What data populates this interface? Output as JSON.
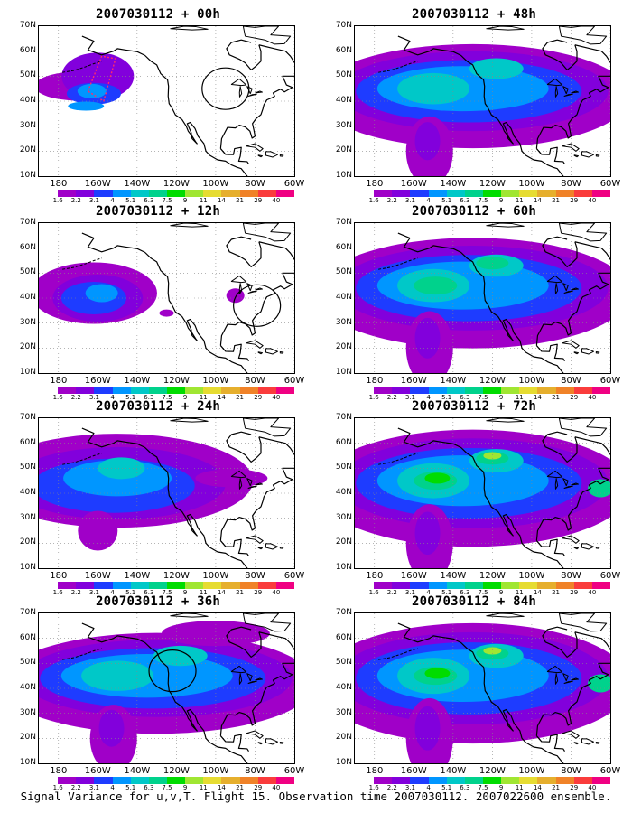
{
  "panels": [
    {
      "title": "2007030112 + 00h",
      "lead_hours": 0,
      "intensity": 0.25,
      "circle": {
        "lon": -95,
        "lat": 45
      },
      "dashed_box": true
    },
    {
      "title": "2007030112 + 48h",
      "lead_hours": 48,
      "intensity": 0.6,
      "circle": null,
      "dashed_box": false
    },
    {
      "title": "2007030112 + 12h",
      "lead_hours": 12,
      "intensity": 0.35,
      "circle": {
        "lon": -79,
        "lat": 37
      },
      "dashed_box": false
    },
    {
      "title": "2007030112 + 60h",
      "lead_hours": 60,
      "intensity": 0.7,
      "circle": null,
      "dashed_box": false
    },
    {
      "title": "2007030112 + 24h",
      "lead_hours": 24,
      "intensity": 0.45,
      "circle": null,
      "dashed_box": false
    },
    {
      "title": "2007030112 + 72h",
      "lead_hours": 72,
      "intensity": 0.8,
      "circle": null,
      "dashed_box": false
    },
    {
      "title": "2007030112 + 36h",
      "lead_hours": 36,
      "intensity": 0.55,
      "circle": {
        "lon": -122,
        "lat": 47
      },
      "dashed_box": false
    },
    {
      "title": "2007030112 + 84h",
      "lead_hours": 84,
      "intensity": 0.85,
      "circle": null,
      "dashed_box": false
    }
  ],
  "axes": {
    "lat_labels": [
      "70N",
      "60N",
      "50N",
      "40N",
      "30N",
      "20N",
      "10N"
    ],
    "lon_labels": [
      "180",
      "160W",
      "140W",
      "120W",
      "100W",
      "80W",
      "60W"
    ],
    "lon_range": [
      -190,
      -60
    ],
    "lat_range": [
      10,
      70
    ],
    "grid": "dotted"
  },
  "colorbar": {
    "labels": [
      "1.6",
      "2.2",
      "3.1",
      "4",
      "5.1",
      "6.3",
      "7.5",
      "9",
      "11",
      "14",
      "21",
      "29",
      "40"
    ],
    "colors": [
      "#a000c8",
      "#8200dc",
      "#1e3cff",
      "#0096ff",
      "#00c8c8",
      "#00d28c",
      "#00dc00",
      "#a0e632",
      "#e6dc32",
      "#e6af2d",
      "#f08228",
      "#fa3c3c",
      "#f00082"
    ]
  },
  "footer": "Signal Variance for u,v,T. Flight 15. Observation time 2007030112. 2007022600 ensemble."
}
